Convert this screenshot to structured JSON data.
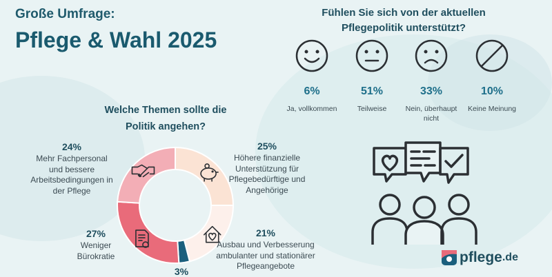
{
  "header": {
    "kicker": "Große Umfrage:",
    "title": "Pflege & Wahl 2025"
  },
  "support_question": {
    "title": "Fühlen Sie sich von der aktuellen Pflegepolitik unterstützt?",
    "answers": [
      {
        "value": "6%",
        "label": "Ja, vollkommen",
        "icon": "happy-face-icon"
      },
      {
        "value": "51%",
        "label": "Teilweise",
        "icon": "neutral-face-icon"
      },
      {
        "value": "33%",
        "label": "Nein, überhaupt nicht",
        "icon": "sad-face-icon"
      },
      {
        "value": "10%",
        "label": "Keine Meinung",
        "icon": "no-opinion-icon"
      }
    ]
  },
  "topics_question": {
    "title": "Welche Themen sollte die Politik angehen?"
  },
  "chart_data": {
    "type": "pie",
    "title": "Welche Themen sollte die Politik angehen?",
    "categories": [
      "Höhere finanzielle Unterstützung für Pflegebedürftige und Angehörige",
      "Ausbau und Verbesserung ambulanter und stationärer Pflegeangebote",
      "",
      "Weniger Bürokratie",
      "Mehr Fachpersonal und bessere Arbeitsbedingungen in der Pflege"
    ],
    "values": [
      25,
      21,
      3,
      27,
      24
    ],
    "data_labels": [
      "25%",
      "21%",
      "3%",
      "27%",
      "24%"
    ],
    "colors": [
      "#fbe3d4",
      "#fdf0eb",
      "#1b5f7d",
      "#e96b7a",
      "#f3aeb6"
    ],
    "icons": [
      "piggy-bank-icon",
      "house-heart-icon",
      "",
      "document-stamp-icon",
      "handshake-icon"
    ]
  },
  "logo": {
    "word": "pflege",
    "tld": ".de"
  }
}
